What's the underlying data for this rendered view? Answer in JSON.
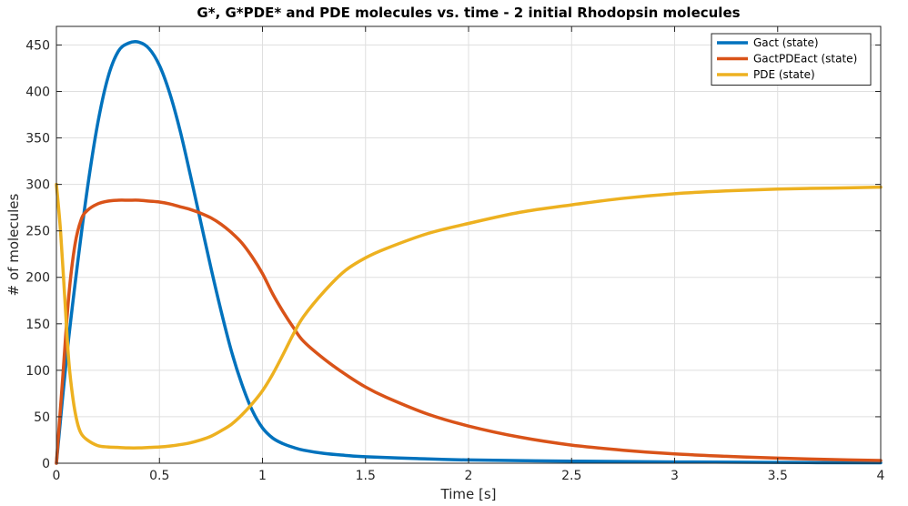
{
  "chart_data": {
    "type": "line",
    "title": "G*, G*PDE* and PDE molecules vs. time - 2 initial Rhodopsin molecules",
    "xlabel": "Time [s]",
    "ylabel": "# of molecules",
    "xlim": [
      0,
      4
    ],
    "ylim": [
      0,
      470
    ],
    "xticks": [
      0,
      0.5,
      1,
      1.5,
      2,
      2.5,
      3,
      3.5,
      4
    ],
    "xtick_labels": [
      "0",
      "0.5",
      "1",
      "1.5",
      "2",
      "2.5",
      "3",
      "3.5",
      "4"
    ],
    "yticks": [
      0,
      50,
      100,
      150,
      200,
      250,
      300,
      350,
      400,
      450
    ],
    "ytick_labels": [
      "0",
      "50",
      "100",
      "150",
      "200",
      "250",
      "300",
      "350",
      "400",
      "450"
    ],
    "grid": true,
    "legend_position": "top-right",
    "series": [
      {
        "name": "Gact (state)",
        "color": "#0072BD",
        "x": [
          0,
          0.05,
          0.1,
          0.15,
          0.2,
          0.25,
          0.3,
          0.35,
          0.4,
          0.45,
          0.5,
          0.55,
          0.6,
          0.65,
          0.7,
          0.75,
          0.8,
          0.85,
          0.9,
          0.95,
          1.0,
          1.05,
          1.1,
          1.15,
          1.2,
          1.3,
          1.4,
          1.5,
          1.75,
          2.0,
          2.5,
          3.0,
          3.5,
          4.0
        ],
        "y": [
          0,
          115,
          210,
          295,
          365,
          415,
          443,
          452,
          453,
          446,
          428,
          398,
          358,
          310,
          260,
          210,
          163,
          120,
          85,
          57,
          38,
          27,
          21,
          17,
          14,
          10.5,
          8.5,
          7,
          5,
          3.5,
          2.2,
          1.4,
          0.8,
          0.5
        ]
      },
      {
        "name": "GactPDEact (state)",
        "color": "#D95319",
        "x": [
          0,
          0.03,
          0.06,
          0.09,
          0.12,
          0.15,
          0.2,
          0.25,
          0.3,
          0.35,
          0.4,
          0.45,
          0.5,
          0.55,
          0.6,
          0.65,
          0.7,
          0.75,
          0.8,
          0.85,
          0.9,
          0.95,
          1.0,
          1.05,
          1.1,
          1.15,
          1.2,
          1.3,
          1.4,
          1.5,
          1.6,
          1.8,
          2.0,
          2.25,
          2.5,
          2.75,
          3.0,
          3.25,
          3.5,
          3.75,
          4.0
        ],
        "y": [
          0,
          90,
          180,
          235,
          262,
          272,
          279,
          282,
          283,
          283,
          283,
          282,
          281,
          279,
          276,
          273,
          269,
          264,
          257,
          248,
          237,
          222,
          204,
          182,
          163,
          146,
          131,
          112,
          96,
          82,
          71,
          53,
          40,
          28,
          19.5,
          14,
          10,
          7.5,
          5.5,
          4,
          3
        ]
      },
      {
        "name": "PDE (state)",
        "color": "#EDB120",
        "x": [
          0,
          0.02,
          0.04,
          0.06,
          0.08,
          0.1,
          0.12,
          0.15,
          0.2,
          0.25,
          0.3,
          0.35,
          0.4,
          0.45,
          0.5,
          0.55,
          0.6,
          0.65,
          0.7,
          0.75,
          0.8,
          0.85,
          0.9,
          0.95,
          1.0,
          1.05,
          1.1,
          1.15,
          1.2,
          1.3,
          1.4,
          1.5,
          1.6,
          1.8,
          2.0,
          2.25,
          2.5,
          2.75,
          3.0,
          3.25,
          3.5,
          3.75,
          4.0
        ],
        "y": [
          300,
          250,
          180,
          110,
          70,
          45,
          32,
          25,
          19,
          17.5,
          17,
          16.5,
          16.5,
          17,
          17.5,
          18.5,
          20,
          22,
          25,
          29,
          35,
          42,
          52,
          64,
          78,
          96,
          117,
          139,
          158,
          185,
          207,
          221,
          231,
          247,
          258,
          270,
          278,
          285,
          290,
          293,
          295,
          296,
          297
        ]
      }
    ]
  }
}
